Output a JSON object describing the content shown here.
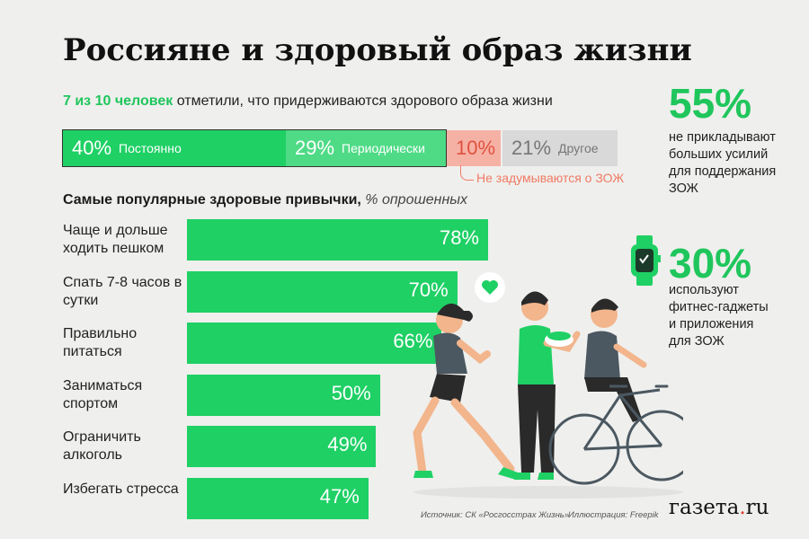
{
  "title": "Россияне и здоровый образ жизни",
  "subtitle": {
    "highlight": "7 из 10 человек",
    "rest": " отметили, что придерживаются здорового образа жизни"
  },
  "stacked": [
    {
      "pct": "40%",
      "label": "Постоянно",
      "value": 40,
      "color": "#1fd065"
    },
    {
      "pct": "29%",
      "label": "Периодически",
      "value": 29,
      "color": "#4fdb86"
    },
    {
      "pct": "10%",
      "label": "",
      "value": 10,
      "color": "#f6b1a5"
    },
    {
      "pct": "21%",
      "label": "Другое",
      "value": 21,
      "color": "#d9d9d9"
    }
  ],
  "neglect_label": "Не задумываются о ЗОЖ",
  "habits_heading": {
    "bold": "Самые популярные здоровые привычки,",
    "italic": " % опрошенных"
  },
  "chart_data": {
    "type": "bar",
    "orientation": "horizontal",
    "title": "Самые популярные здоровые привычки, % опрошенных",
    "categories": [
      "Чаще и дольше ходить пешком",
      "Спать 7-8 часов в сутки",
      "Правильно питаться",
      "Заниматься спортом",
      "Ограничить алкоголь",
      "Избегать стресса"
    ],
    "values": [
      78,
      70,
      66,
      50,
      49,
      47
    ],
    "value_labels": [
      "78%",
      "70%",
      "66%",
      "50%",
      "49%",
      "47%"
    ],
    "xlim": [
      0,
      100
    ],
    "grid": false,
    "color": "#1fd065"
  },
  "stat1": {
    "value": "55%",
    "lines": [
      "не прикладывают",
      "больших усилий",
      "для поддержания",
      "ЗОЖ"
    ]
  },
  "stat2": {
    "value": "30%",
    "lines": [
      "используют",
      "фитнес-гаджеты",
      "и приложения",
      "для ЗОЖ"
    ]
  },
  "source": "Источник: СК «Росгосстрах Жизнь»",
  "illustration": "Иллюстрация: Freepik",
  "logo": {
    "main": "газета",
    "dot": ".",
    "tld": "ru"
  },
  "icons": [
    "smartwatch-icon",
    "heart-icon"
  ]
}
